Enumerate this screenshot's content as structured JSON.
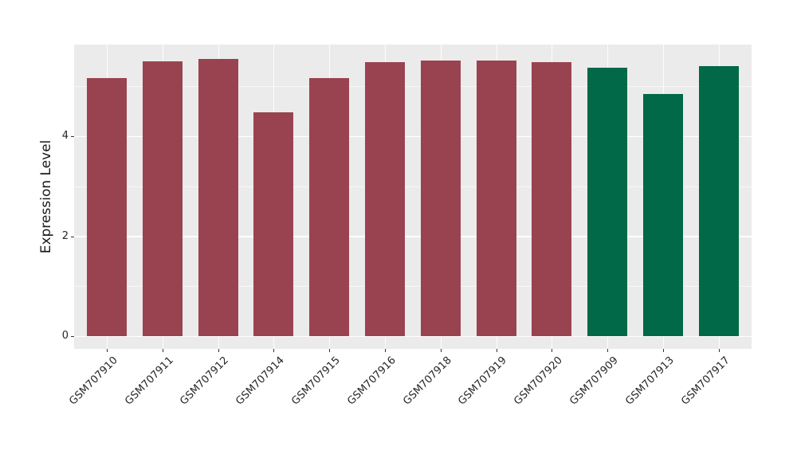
{
  "chart_data": {
    "type": "bar",
    "title": "",
    "xlabel": "",
    "ylabel": "Expression Level",
    "ylim": [
      0,
      5.83
    ],
    "yticks": [
      0,
      2,
      4
    ],
    "yticks_minor": [
      1,
      3,
      5
    ],
    "grid": true,
    "legend_position": "none",
    "categories": [
      "GSM707910",
      "GSM707911",
      "GSM707912",
      "GSM707914",
      "GSM707915",
      "GSM707916",
      "GSM707918",
      "GSM707919",
      "GSM707920",
      "GSM707909",
      "GSM707913",
      "GSM707917"
    ],
    "values": [
      5.16,
      5.5,
      5.55,
      4.48,
      5.16,
      5.48,
      5.51,
      5.51,
      5.49,
      5.37,
      4.84,
      5.4
    ],
    "bar_color_keys": [
      "red",
      "red",
      "red",
      "red",
      "red",
      "red",
      "red",
      "red",
      "red",
      "green",
      "green",
      "green"
    ],
    "color_map": {
      "red": "#9A4350",
      "green": "#016848"
    }
  },
  "style_colors": {
    "figure_background": "#ffffff",
    "plot_background": "#ebebeb",
    "grid_major": "#ffffff",
    "grid_minor": "rgba(255,255,255,0.65)",
    "grid_vertical": "rgba(255,255,255,0.9)",
    "tick_mark": "#333333",
    "tick_text": "#262626"
  }
}
